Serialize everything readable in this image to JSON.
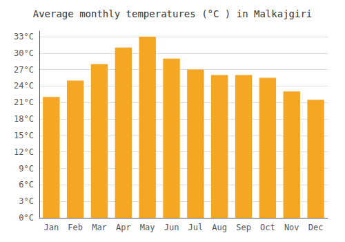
{
  "chart_data": {
    "type": "bar",
    "title": "Average monthly temperatures (°C ) in Malkajgiri",
    "categories": [
      "Jan",
      "Feb",
      "Mar",
      "Apr",
      "May",
      "Jun",
      "Jul",
      "Aug",
      "Sep",
      "Oct",
      "Nov",
      "Dec"
    ],
    "values": [
      22.0,
      25.0,
      28.0,
      31.0,
      33.0,
      29.0,
      27.0,
      26.0,
      26.0,
      25.5,
      23.0,
      21.5
    ],
    "color": "#F5A623",
    "ylim": [
      0,
      34
    ],
    "yticks": [
      {
        "value": 0,
        "label": "0°C"
      },
      {
        "value": 3,
        "label": "3°C"
      },
      {
        "value": 6,
        "label": "6°C"
      },
      {
        "value": 9,
        "label": "9°C"
      },
      {
        "value": 12,
        "label": "12°C"
      },
      {
        "value": 15,
        "label": "15°C"
      },
      {
        "value": 18,
        "label": "18°C"
      },
      {
        "value": 21,
        "label": "21°C"
      },
      {
        "value": 24,
        "label": "24°C"
      },
      {
        "value": 27,
        "label": "27°C"
      },
      {
        "value": 30,
        "label": "30°C"
      },
      {
        "value": 33,
        "label": "33°C"
      }
    ],
    "grid": true
  }
}
